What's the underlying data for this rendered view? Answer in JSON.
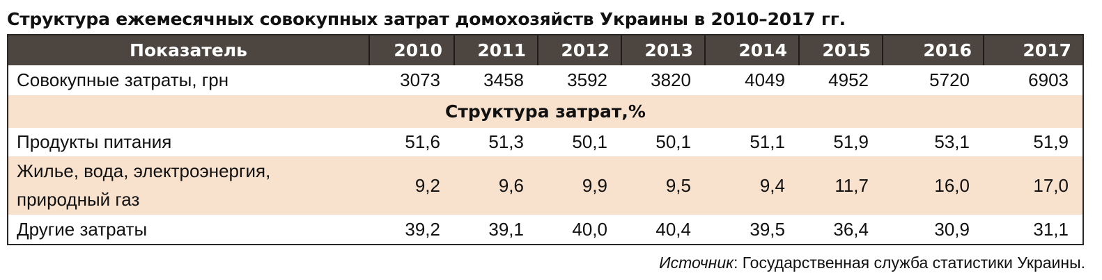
{
  "title": "Структура ежемесячных совокупных затрат домохозяйств Украины в 2010–2017 гг.",
  "table": {
    "header_label": "Показатель",
    "years": [
      "2010",
      "2011",
      "2012",
      "2013",
      "2014",
      "2015",
      "2016",
      "2017"
    ],
    "total_row": {
      "label": "Совокупные затраты, грн",
      "values": [
        "3073",
        "3458",
        "3592",
        "3820",
        "4049",
        "4952",
        "5720",
        "6903"
      ]
    },
    "section_title": "Структура затрат,%",
    "rows": [
      {
        "label": "Продукты питания",
        "values": [
          "51,6",
          "51,3",
          "50,1",
          "50,1",
          "51,1",
          "51,9",
          "53,1",
          "51,9"
        ]
      },
      {
        "label_line1": "Жилье, вода, электроэнергия,",
        "label_line2": "природный газ",
        "values": [
          "9,2",
          "9,6",
          "9,9",
          "9,5",
          "9,4",
          "11,7",
          "16,0",
          "17,0"
        ]
      },
      {
        "label": "Другие затраты",
        "values": [
          "39,2",
          "39,1",
          "40,0",
          "40,4",
          "39,5",
          "36,4",
          "30,9",
          "31,1"
        ]
      }
    ]
  },
  "source": {
    "label": "Источник",
    "text": ": Государственная служба статистики Украины."
  },
  "colors": {
    "header_bg": "#4c4540",
    "beige_bg": "#f8e2cd",
    "border": "#2b2724"
  }
}
